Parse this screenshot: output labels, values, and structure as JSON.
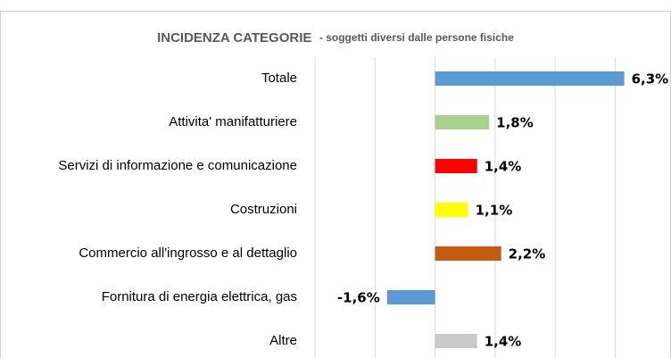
{
  "chart_data": {
    "type": "hbar",
    "title": "INCIDENZA CATEGORIE",
    "subtitle": "- soggetti diversi dalle persone fisiche",
    "categories": [
      "Totale",
      "Attivita' manifatturiere",
      "Servizi di informazione e comunicazione",
      "Costruzioni",
      "Commercio all'ingrosso e al dettaglio",
      "Fornitura di energia elettrica, gas",
      "Altre"
    ],
    "values": [
      6.3,
      1.8,
      1.4,
      1.1,
      2.2,
      -1.6,
      1.4
    ],
    "value_labels": [
      "6,3%",
      "1,8%",
      "1,4%",
      "1,1%",
      "2,2%",
      "-1,6%",
      "1,4%"
    ],
    "colors": [
      "#5b9bd5",
      "#a9d18e",
      "#ff0000",
      "#ffff00",
      "#c55a11",
      "#5b9bd5",
      "#c9c9c9"
    ],
    "xlim": [
      -4,
      7.5
    ],
    "xticks": [
      -4,
      -2,
      0,
      2,
      4,
      6
    ],
    "grid": true
  }
}
